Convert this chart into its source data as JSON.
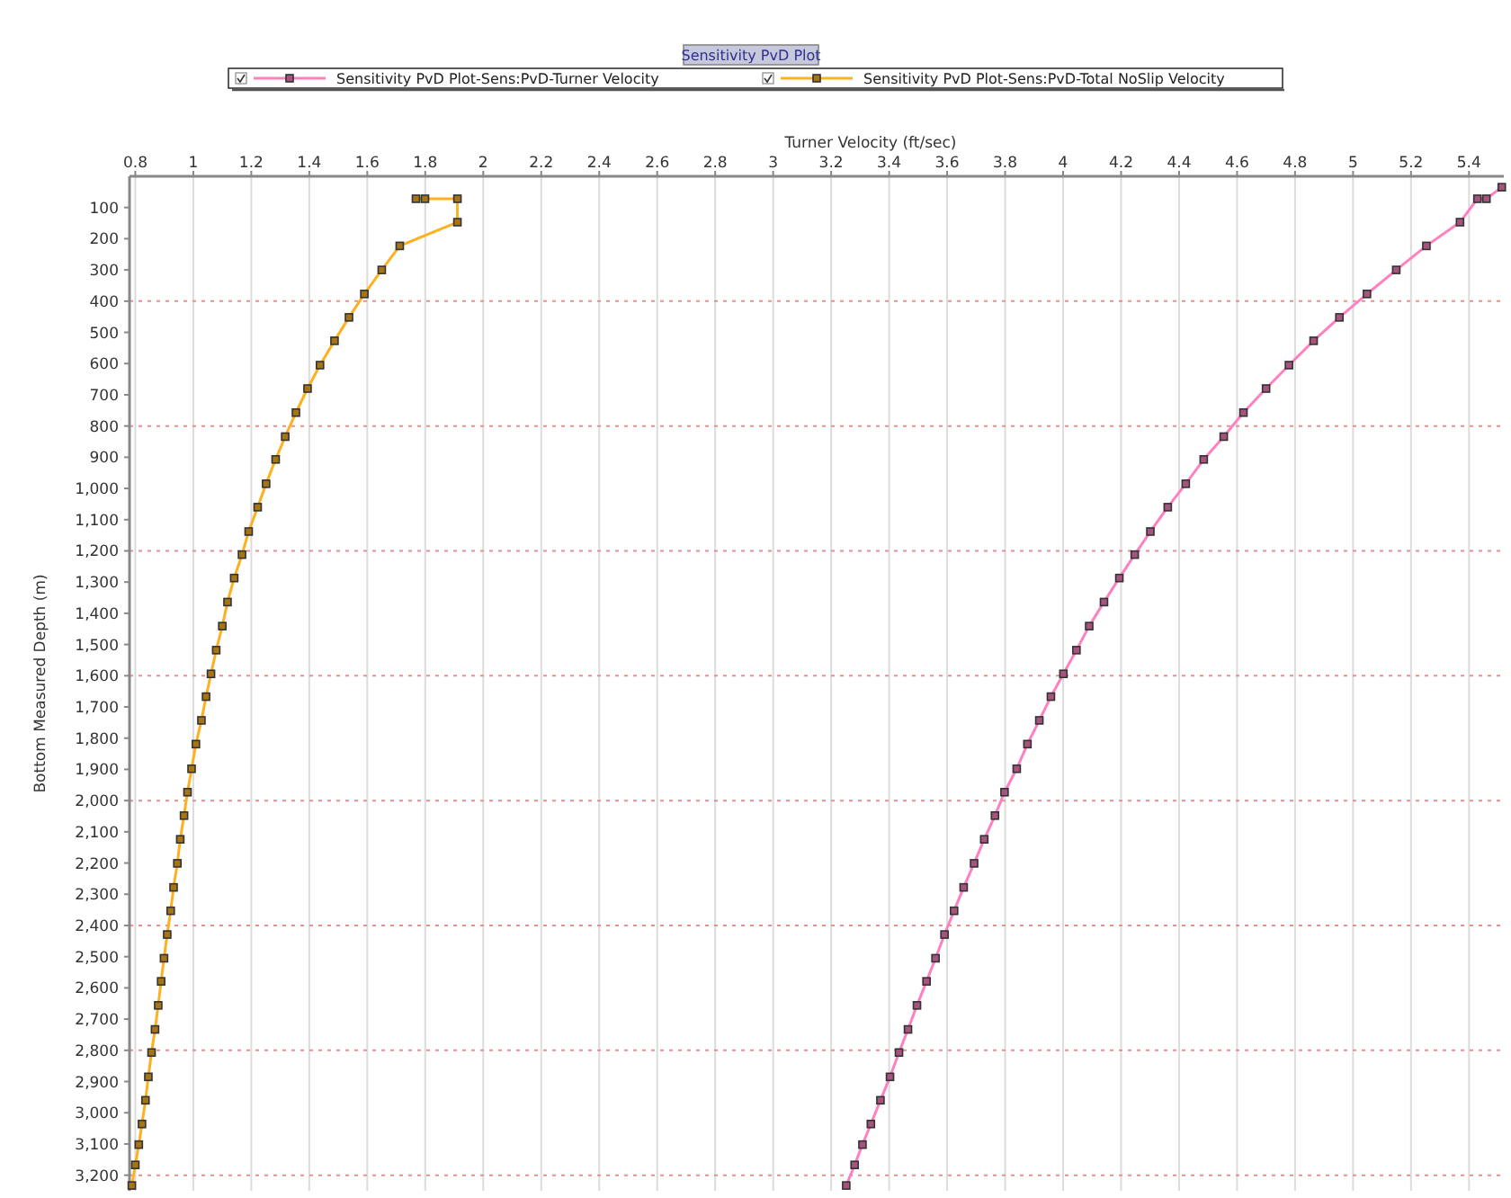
{
  "chart_data": {
    "type": "line",
    "title": "Sensitivity PvD Plot",
    "xlabel": "Turner Velocity  (ft/sec)",
    "ylabel": "Bottom Measured Depth  (m)",
    "xlim": [
      0.78,
      5.52
    ],
    "xticks": [
      0.8,
      1,
      1.2,
      1.4,
      1.6,
      1.8,
      2,
      2.2,
      2.4,
      2.6,
      2.8,
      3,
      3.2,
      3.4,
      3.6,
      3.8,
      4,
      4.2,
      4.4,
      4.6,
      4.8,
      5,
      5.2,
      5.4
    ],
    "ylim": [
      3250,
      0
    ],
    "yticks": [
      100,
      200,
      300,
      400,
      500,
      600,
      700,
      800,
      900,
      {
        "value": 1000,
        "label": "1,000"
      },
      {
        "value": 1100,
        "label": "1,100"
      },
      {
        "value": 1200,
        "label": "1,200"
      },
      {
        "value": 1300,
        "label": "1,300"
      },
      {
        "value": 1400,
        "label": "1,400"
      },
      {
        "value": 1500,
        "label": "1,500"
      },
      {
        "value": 1600,
        "label": "1,600"
      },
      {
        "value": 1700,
        "label": "1,700"
      },
      {
        "value": 1800,
        "label": "1,800"
      },
      {
        "value": 1900,
        "label": "1,900"
      },
      {
        "value": 2000,
        "label": "2,000"
      },
      {
        "value": 2100,
        "label": "2,100"
      },
      {
        "value": 2200,
        "label": "2,200"
      },
      {
        "value": 2300,
        "label": "2,300"
      },
      {
        "value": 2400,
        "label": "2,400"
      },
      {
        "value": 2500,
        "label": "2,500"
      },
      {
        "value": 2600,
        "label": "2,600"
      },
      {
        "value": 2700,
        "label": "2,700"
      },
      {
        "value": 2800,
        "label": "2,800"
      },
      {
        "value": 2900,
        "label": "2,900"
      },
      {
        "value": 3000,
        "label": "3,000"
      },
      {
        "value": 3100,
        "label": "3,100"
      },
      {
        "value": 3200,
        "label": "3,200"
      }
    ],
    "grid": "x",
    "legend": "top",
    "marker": "square",
    "line_style": "solid",
    "ref_lines": [
      {
        "axis": "y",
        "value": 400,
        "color": "#e89090",
        "line_style": "dotted"
      },
      {
        "axis": "y",
        "value": 800,
        "color": "#e89090",
        "line_style": "dotted"
      },
      {
        "axis": "y",
        "value": 1200,
        "color": "#e89090",
        "line_style": "dotted"
      },
      {
        "axis": "y",
        "value": 1600,
        "color": "#e89090",
        "line_style": "dotted"
      },
      {
        "axis": "y",
        "value": 2000,
        "color": "#e89090",
        "line_style": "dotted"
      },
      {
        "axis": "y",
        "value": 2400,
        "color": "#e89090",
        "line_style": "dotted"
      },
      {
        "axis": "y",
        "value": 2800,
        "color": "#e89090",
        "line_style": "dotted"
      },
      {
        "axis": "y",
        "value": 3200,
        "color": "#e89090",
        "line_style": "dotted"
      }
    ],
    "series": [
      {
        "name": "Sensitivity PvD Plot-Sens:PvD-Turner Velocity",
        "color": "#ff80c0",
        "x": [
          5.513,
          5.46,
          5.429,
          5.369,
          5.253,
          5.149,
          5.048,
          4.953,
          4.864,
          4.779,
          4.7,
          4.622,
          4.554,
          4.485,
          4.423,
          4.361,
          4.301,
          4.247,
          4.194,
          4.141,
          4.09,
          4.046,
          4.001,
          3.958,
          3.918,
          3.877,
          3.84,
          3.798,
          3.765,
          3.728,
          3.693,
          3.657,
          3.624,
          3.591,
          3.56,
          3.529,
          3.496,
          3.465,
          3.434,
          3.403,
          3.37,
          3.337,
          3.308,
          3.281,
          3.252
        ],
        "values": [
          35,
          72,
          72,
          147,
          223,
          300,
          377,
          452,
          527,
          605,
          680,
          757,
          834,
          907,
          985,
          1060,
          1138,
          1212,
          1287,
          1364,
          1441,
          1518,
          1594,
          1667,
          1743,
          1819,
          1898,
          1973,
          2048,
          2124,
          2201,
          2278,
          2353,
          2429,
          2505,
          2579,
          2656,
          2733,
          2807,
          2885,
          2960,
          3036,
          3102,
          3167,
          3233
        ]
      },
      {
        "name": "Sensitivity PvD Plot-Sens:PvD-Total NoSlip Velocity",
        "color": "#ffb020",
        "x": [
          1.768,
          1.799,
          1.911,
          1.911,
          1.712,
          1.65,
          1.59,
          1.537,
          1.487,
          1.437,
          1.394,
          1.354,
          1.317,
          1.284,
          1.251,
          1.222,
          1.191,
          1.168,
          1.141,
          1.118,
          1.1,
          1.079,
          1.061,
          1.044,
          1.028,
          1.009,
          0.994,
          0.98,
          0.968,
          0.955,
          0.945,
          0.932,
          0.922,
          0.91,
          0.899,
          0.889,
          0.879,
          0.868,
          0.856,
          0.845,
          0.835,
          0.823,
          0.812,
          0.8,
          0.788
        ],
        "values": [
          72,
          72,
          72,
          147,
          223,
          300,
          377,
          452,
          527,
          605,
          680,
          757,
          834,
          907,
          985,
          1060,
          1138,
          1212,
          1287,
          1364,
          1441,
          1518,
          1594,
          1667,
          1743,
          1819,
          1898,
          1973,
          2048,
          2124,
          2201,
          2278,
          2353,
          2429,
          2505,
          2579,
          2656,
          2733,
          2807,
          2885,
          2960,
          3036,
          3102,
          3167,
          3233
        ]
      }
    ]
  }
}
